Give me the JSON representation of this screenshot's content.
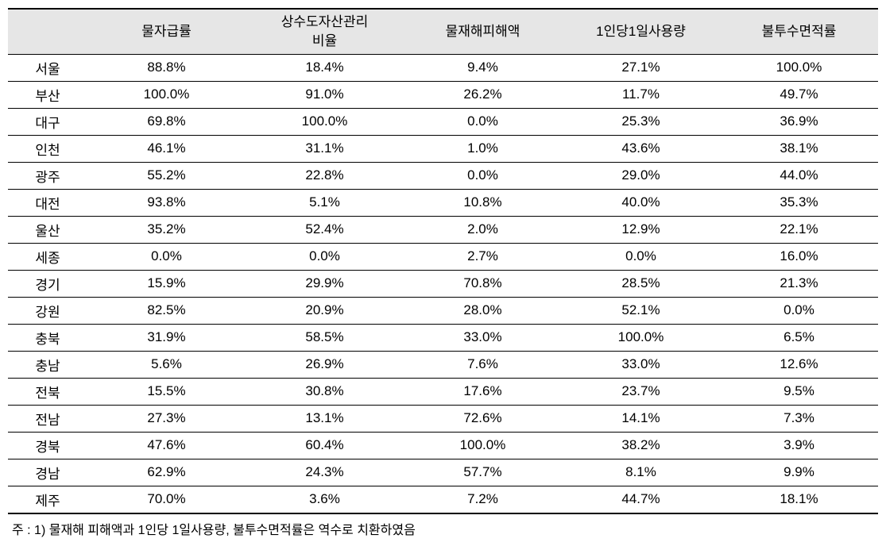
{
  "table": {
    "columns": [
      "",
      "물자급률",
      "상수도자산관리\n비율",
      "물재해피해액",
      "1인당1일사용량",
      "불투수면적률"
    ],
    "column_widths": [
      "100px",
      "auto",
      "auto",
      "auto",
      "auto",
      "auto"
    ],
    "header_bg": "#e6e6e6",
    "border_color": "#000000",
    "font_size": 17,
    "rows": [
      {
        "region": "서울",
        "values": [
          "88.8%",
          "18.4%",
          "9.4%",
          "27.1%",
          "100.0%"
        ]
      },
      {
        "region": "부산",
        "values": [
          "100.0%",
          "91.0%",
          "26.2%",
          "11.7%",
          "49.7%"
        ]
      },
      {
        "region": "대구",
        "values": [
          "69.8%",
          "100.0%",
          "0.0%",
          "25.3%",
          "36.9%"
        ]
      },
      {
        "region": "인천",
        "values": [
          "46.1%",
          "31.1%",
          "1.0%",
          "43.6%",
          "38.1%"
        ]
      },
      {
        "region": "광주",
        "values": [
          "55.2%",
          "22.8%",
          "0.0%",
          "29.0%",
          "44.0%"
        ]
      },
      {
        "region": "대전",
        "values": [
          "93.8%",
          "5.1%",
          "10.8%",
          "40.0%",
          "35.3%"
        ]
      },
      {
        "region": "울산",
        "values": [
          "35.2%",
          "52.4%",
          "2.0%",
          "12.9%",
          "22.1%"
        ]
      },
      {
        "region": "세종",
        "values": [
          "0.0%",
          "0.0%",
          "2.7%",
          "0.0%",
          "16.0%"
        ]
      },
      {
        "region": "경기",
        "values": [
          "15.9%",
          "29.9%",
          "70.8%",
          "28.5%",
          "21.3%"
        ]
      },
      {
        "region": "강원",
        "values": [
          "82.5%",
          "20.9%",
          "28.0%",
          "52.1%",
          "0.0%"
        ]
      },
      {
        "region": "충북",
        "values": [
          "31.9%",
          "58.5%",
          "33.0%",
          "100.0%",
          "6.5%"
        ]
      },
      {
        "region": "충남",
        "values": [
          "5.6%",
          "26.9%",
          "7.6%",
          "33.0%",
          "12.6%"
        ]
      },
      {
        "region": "전북",
        "values": [
          "15.5%",
          "30.8%",
          "17.6%",
          "23.7%",
          "9.5%"
        ]
      },
      {
        "region": "전남",
        "values": [
          "27.3%",
          "13.1%",
          "72.6%",
          "14.1%",
          "7.3%"
        ]
      },
      {
        "region": "경북",
        "values": [
          "47.6%",
          "60.4%",
          "100.0%",
          "38.2%",
          "3.9%"
        ]
      },
      {
        "region": "경남",
        "values": [
          "62.9%",
          "24.3%",
          "57.7%",
          "8.1%",
          "9.9%"
        ]
      },
      {
        "region": "제주",
        "values": [
          "70.0%",
          "3.6%",
          "7.2%",
          "44.7%",
          "18.1%"
        ]
      }
    ]
  },
  "footnote": "주 : 1) 물재해 피해액과 1인당 1일사용량, 불투수면적률은 역수로 치환하였음"
}
